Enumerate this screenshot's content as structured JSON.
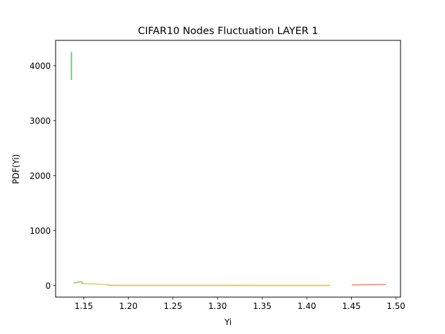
{
  "chart_data": {
    "type": "line",
    "title": "CIFAR10 Nodes Fluctuation LAYER 1",
    "xlabel": "Yi",
    "ylabel": "PDF(Yi)",
    "xlim": [
      1.1185,
      1.505
    ],
    "ylim": [
      -210,
      4460
    ],
    "x_ticks": [
      1.15,
      1.2,
      1.25,
      1.3,
      1.35,
      1.4,
      1.45,
      1.5
    ],
    "x_tick_labels": [
      "1.15",
      "1.20",
      "1.25",
      "1.30",
      "1.35",
      "1.40",
      "1.45",
      "1.50"
    ],
    "y_ticks": [
      0,
      1000,
      2000,
      3000,
      4000
    ],
    "y_tick_labels": [
      "0",
      "1000",
      "2000",
      "3000",
      "4000"
    ],
    "grid": false,
    "series": [
      {
        "color": "#2ca02c",
        "x": [
          1.1362,
          1.1362
        ],
        "y": [
          3750,
          4240
        ]
      },
      {
        "color": "#5cb02a",
        "x": [
          1.139,
          1.142,
          1.145,
          1.147,
          1.149
        ],
        "y": [
          50,
          55,
          65,
          75,
          45
        ]
      },
      {
        "color": "#c7c52a",
        "x": [
          1.148,
          1.155,
          1.165,
          1.178
        ],
        "y": [
          30,
          35,
          28,
          15
        ]
      },
      {
        "color": "#d4a017",
        "x": [
          1.178,
          1.2,
          1.25,
          1.3,
          1.35,
          1.4,
          1.4255
        ],
        "y": [
          5,
          3,
          3,
          3,
          2,
          2,
          2
        ]
      },
      {
        "color": "#ff5a2a",
        "x": [
          1.451,
          1.46,
          1.47,
          1.48,
          1.488
        ],
        "y": [
          12,
          15,
          18,
          20,
          19
        ]
      }
    ]
  }
}
